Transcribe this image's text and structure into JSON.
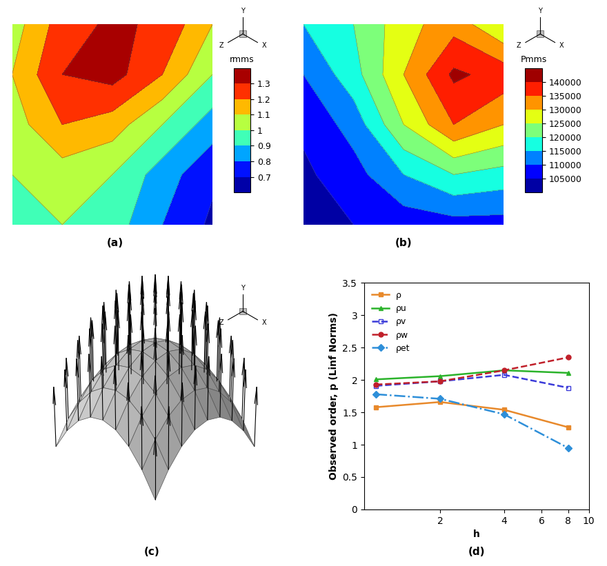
{
  "chart_data": [
    {
      "type": "heatmap",
      "label": "(a)",
      "triad": [
        "Y",
        "Z",
        "X"
      ],
      "colorbar_title": "rmms",
      "cells": [
        [
          1.05,
          1.25,
          1.32,
          1.28,
          1.1
        ],
        [
          1.1,
          1.3,
          1.34,
          1.2,
          1.0
        ],
        [
          1.05,
          1.2,
          1.15,
          1.0,
          0.85
        ],
        [
          1.0,
          1.05,
          1.0,
          0.85,
          0.72
        ],
        [
          1.0,
          1.0,
          0.95,
          0.8,
          0.68
        ]
      ],
      "color_range": [
        0.65,
        1.35
      ],
      "colorbar_ticks": [
        0.7,
        0.8,
        0.9,
        1,
        1.1,
        1.2,
        1.3
      ]
    },
    {
      "type": "heatmap",
      "label": "(b)",
      "triad": [
        "Y",
        "Z",
        "X"
      ],
      "colorbar_title": "Pmms",
      "cells": [
        [
          115000,
          120000,
          128000,
          133000,
          125000
        ],
        [
          110000,
          118000,
          130000,
          141000,
          138000
        ],
        [
          106000,
          112000,
          125000,
          135000,
          130000
        ],
        [
          104000,
          108000,
          115000,
          120000,
          118000
        ],
        [
          103000,
          105000,
          107000,
          108000,
          108000
        ]
      ],
      "color_range": [
        102500,
        142500
      ],
      "colorbar_ticks": [
        105000,
        110000,
        115000,
        120000,
        125000,
        130000,
        135000,
        140000
      ]
    },
    {
      "type": "surface_normals",
      "label": "(c)",
      "triad": [
        "Y",
        "Z",
        "X"
      ]
    },
    {
      "type": "line",
      "label": "(d)",
      "x_label": "h",
      "y_label": "Observed order, p (Linf Norms)",
      "x": [
        1,
        2,
        4,
        8
      ],
      "log": "x",
      "xlim": [
        0.88,
        10
      ],
      "xticks": [
        2,
        4,
        6,
        8,
        10
      ],
      "ylim": [
        0,
        3.5
      ],
      "yticks": [
        0,
        0.5,
        1,
        1.5,
        2,
        2.5,
        3,
        3.5
      ],
      "legend": "upper left",
      "series": [
        {
          "name": "ρ",
          "color": "#e8892b",
          "marker": "square",
          "line_style": "solid",
          "values": [
            1.58,
            1.66,
            1.54,
            1.27
          ]
        },
        {
          "name": "ρu",
          "color": "#2bb32b",
          "marker": "triangle",
          "line_style": "solid",
          "values": [
            2.01,
            2.06,
            2.15,
            2.11
          ]
        },
        {
          "name": "ρv",
          "color": "#3b3bd9",
          "marker": "square_open",
          "line_style": "dashed",
          "values": [
            1.91,
            1.98,
            2.08,
            1.88
          ]
        },
        {
          "name": "ρw",
          "color": "#c0202a",
          "marker": "circle",
          "line_style": "dashed",
          "values": [
            1.93,
            1.98,
            2.15,
            2.35
          ]
        },
        {
          "name": "ρet",
          "color": "#2e8fd9",
          "marker": "diamond",
          "line_style": "dashdot",
          "values": [
            1.78,
            1.71,
            1.47,
            0.95
          ]
        }
      ]
    }
  ]
}
